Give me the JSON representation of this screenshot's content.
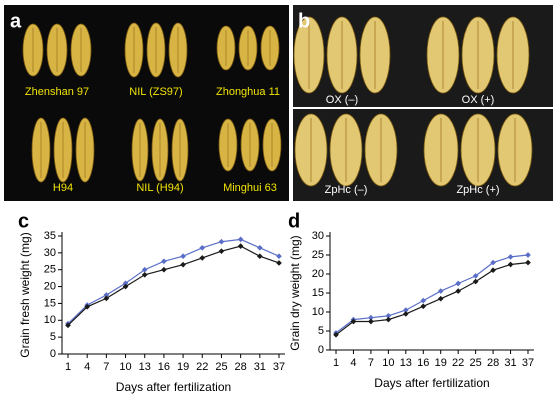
{
  "figure": {
    "panel_a": {
      "letter": "a",
      "labels": [
        "Zhenshan 97",
        "NIL (ZS97)",
        "Zhonghua 11",
        "H94",
        "NIL (H94)",
        "Minghui 63"
      ]
    },
    "panel_b": {
      "letter": "b",
      "labels": [
        "OX (–)",
        "OX (+)",
        "ZpHc (–)",
        "ZpHc (+)"
      ]
    }
  },
  "chart_data": [
    {
      "type": "line",
      "panel_label": "c",
      "x_label": "Days after fertilization",
      "y_label": "Grain fresh weight (mg)",
      "categories": [
        "1",
        "4",
        "7",
        "10",
        "13",
        "16",
        "19",
        "22",
        "25",
        "28",
        "31",
        "37"
      ],
      "ylim": [
        0,
        35
      ],
      "yticks": [
        0,
        5,
        10,
        15,
        20,
        25,
        30,
        35
      ],
      "series": [
        {
          "color": "#5a6ec8",
          "values": [
            9,
            14.5,
            17.5,
            21,
            25,
            27.5,
            29,
            31.5,
            33.3,
            34,
            31.5,
            29
          ]
        },
        {
          "color": "#1a1a1a",
          "values": [
            8.5,
            14,
            16.5,
            20,
            23.5,
            25,
            26.5,
            28.5,
            30.5,
            32,
            29,
            27
          ]
        }
      ]
    },
    {
      "type": "line",
      "panel_label": "d",
      "x_label": "Days after fertilization",
      "y_label": "Grain dry weight (mg)",
      "categories": [
        "1",
        "4",
        "7",
        "10",
        "13",
        "16",
        "19",
        "22",
        "25",
        "28",
        "31",
        "37"
      ],
      "ylim": [
        0,
        30
      ],
      "yticks": [
        0,
        5,
        10,
        15,
        20,
        25,
        30
      ],
      "series": [
        {
          "color": "#5a6ec8",
          "values": [
            4.5,
            8,
            8.5,
            9,
            10.5,
            13,
            15.5,
            17.5,
            19.5,
            23,
            24.5,
            25
          ]
        },
        {
          "color": "#1a1a1a",
          "values": [
            4,
            7.5,
            7.5,
            8,
            9.5,
            11.5,
            13.5,
            15.5,
            18,
            21,
            22.5,
            23
          ]
        }
      ]
    }
  ]
}
